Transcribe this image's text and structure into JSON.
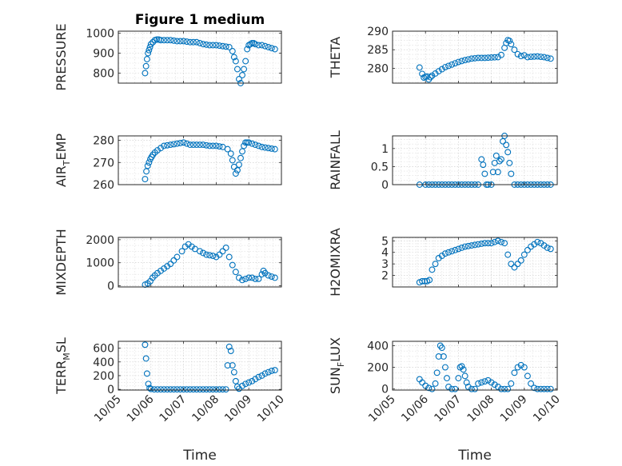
{
  "figure_title": "Figure 1 medium",
  "marker_color": "#0072BD",
  "chart_data": [
    {
      "type": "scatter",
      "panel": "PRESSURE",
      "ylabel": {
        "main": "PRESSURE",
        "sub": ""
      },
      "xlabel": "",
      "title": "Figure 1 medium",
      "ylim": [
        750,
        1010
      ],
      "yticks": [
        800,
        900,
        1000
      ],
      "yticklabels": [
        "800",
        "900",
        "1000"
      ],
      "x": [
        0.82,
        0.85,
        0.88,
        0.91,
        0.94,
        0.97,
        1.0,
        1.06,
        1.12,
        1.18,
        1.24,
        1.3,
        1.4,
        1.6,
        1.8,
        2.0,
        2.2,
        2.4,
        2.6,
        2.8,
        3.0,
        3.2,
        3.4,
        3.5,
        3.55,
        3.6,
        3.65,
        3.7,
        3.75,
        3.8,
        3.85,
        3.9,
        3.95,
        4.0,
        4.05,
        4.1,
        4.15,
        4.2,
        4.3,
        4.4,
        4.5,
        4.6,
        4.7,
        4.8
      ],
      "values": [
        800,
        835,
        870,
        900,
        915,
        930,
        945,
        955,
        965,
        968,
        968,
        965,
        965,
        965,
        960,
        960,
        955,
        955,
        945,
        940,
        940,
        935,
        930,
        910,
        880,
        860,
        820,
        770,
        750,
        790,
        820,
        860,
        920,
        940,
        945,
        950,
        950,
        945,
        940,
        940,
        935,
        930,
        925,
        920
      ]
    },
    {
      "type": "scatter",
      "panel": "THETA",
      "ylabel": {
        "main": "THETA",
        "sub": ""
      },
      "xlabel": "",
      "title": "",
      "ylim": [
        276,
        290
      ],
      "yticks": [
        280,
        285,
        290
      ],
      "yticklabels": [
        "280",
        "285",
        "290"
      ],
      "x": [
        0.82,
        0.9,
        0.95,
        1.0,
        1.05,
        1.1,
        1.15,
        1.2,
        1.3,
        1.4,
        1.6,
        1.8,
        2.0,
        2.2,
        2.4,
        2.6,
        2.8,
        3.0,
        3.2,
        3.3,
        3.4,
        3.45,
        3.5,
        3.55,
        3.6,
        3.7,
        3.8,
        3.9,
        4.0,
        4.1,
        4.2,
        4.4,
        4.6,
        4.8
      ],
      "values": [
        280.2,
        278.5,
        277.5,
        277.7,
        277.8,
        277.0,
        277.6,
        278.0,
        278.6,
        279.2,
        280.3,
        281.0,
        281.7,
        282.2,
        282.6,
        282.8,
        282.8,
        282.9,
        283.0,
        283.6,
        285.5,
        286.8,
        287.6,
        287.4,
        286.5,
        285.0,
        283.8,
        283.3,
        283.5,
        283.0,
        283.1,
        283.2,
        283.0,
        282.6
      ]
    },
    {
      "type": "scatter",
      "panel": "AIR_TEMP",
      "ylabel": {
        "main": "AIR",
        "sub": "T",
        "rest": "EMP"
      },
      "xlabel": "",
      "title": "",
      "ylim": [
        260,
        282
      ],
      "yticks": [
        260,
        270,
        280
      ],
      "yticklabels": [
        "260",
        "270",
        "280"
      ],
      "x": [
        0.82,
        0.86,
        0.9,
        0.94,
        0.98,
        1.02,
        1.06,
        1.12,
        1.2,
        1.3,
        1.4,
        1.6,
        1.8,
        2.0,
        2.2,
        2.4,
        2.6,
        2.8,
        3.0,
        3.2,
        3.35,
        3.45,
        3.5,
        3.55,
        3.6,
        3.65,
        3.7,
        3.75,
        3.8,
        3.85,
        3.9,
        3.95,
        4.0,
        4.1,
        4.2,
        4.3,
        4.4,
        4.6,
        4.8
      ],
      "values": [
        262.5,
        266,
        268.5,
        270,
        271.5,
        272.5,
        273.5,
        274.5,
        275.5,
        276.5,
        277.5,
        278,
        278.5,
        279,
        278,
        278,
        278,
        277.5,
        277.5,
        277,
        276,
        274,
        271,
        268,
        265,
        266.5,
        269,
        272,
        275,
        277.5,
        279,
        279,
        279,
        278.5,
        278,
        277.5,
        277,
        276.5,
        276
      ]
    },
    {
      "type": "scatter",
      "panel": "RAINFALL",
      "ylabel": {
        "main": "RAINFALL",
        "sub": ""
      },
      "xlabel": "",
      "title": "",
      "ylim": [
        0,
        1.35
      ],
      "yticks": [
        0,
        0.5,
        1
      ],
      "yticklabels": [
        "0",
        "0.5",
        "1"
      ],
      "x": [
        0.82,
        1.0,
        1.2,
        1.4,
        1.6,
        1.8,
        2.0,
        2.2,
        2.4,
        2.6,
        2.7,
        2.75,
        2.8,
        2.85,
        2.9,
        3.0,
        3.05,
        3.1,
        3.15,
        3.2,
        3.25,
        3.3,
        3.35,
        3.4,
        3.45,
        3.5,
        3.55,
        3.6,
        3.7,
        3.8,
        4.0,
        4.2,
        4.4,
        4.6,
        4.8
      ],
      "values": [
        0,
        0,
        0,
        0,
        0,
        0,
        0,
        0,
        0,
        0,
        0.7,
        0.55,
        0.3,
        0,
        0,
        0,
        0.35,
        0.6,
        0.8,
        0.35,
        0.65,
        0.7,
        1.2,
        1.35,
        1.1,
        0.9,
        0.6,
        0.3,
        0,
        0,
        0,
        0,
        0,
        0,
        0
      ]
    },
    {
      "type": "scatter",
      "panel": "MIXDEPTH",
      "ylabel": {
        "main": "MIXDEPTH",
        "sub": ""
      },
      "xlabel": "",
      "title": "",
      "ylim": [
        -50,
        2100
      ],
      "yticks": [
        0,
        1000,
        2000
      ],
      "yticklabels": [
        "0",
        "1000",
        "2000"
      ],
      "x": [
        0.82,
        0.9,
        0.98,
        1.05,
        1.12,
        1.2,
        1.3,
        1.4,
        1.6,
        1.8,
        1.95,
        2.05,
        2.15,
        2.25,
        2.35,
        2.5,
        2.7,
        2.9,
        3.0,
        3.1,
        3.2,
        3.3,
        3.4,
        3.5,
        3.6,
        3.7,
        3.8,
        3.9,
        4.0,
        4.1,
        4.2,
        4.3,
        4.4,
        4.45,
        4.5,
        4.6,
        4.7,
        4.8
      ],
      "values": [
        50,
        100,
        200,
        350,
        450,
        550,
        650,
        750,
        950,
        1250,
        1500,
        1700,
        1800,
        1700,
        1600,
        1500,
        1350,
        1300,
        1250,
        1350,
        1500,
        1650,
        1250,
        900,
        600,
        350,
        250,
        300,
        350,
        350,
        300,
        300,
        500,
        650,
        550,
        450,
        400,
        350
      ]
    },
    {
      "type": "scatter",
      "panel": "H2OMIXRA",
      "ylabel": {
        "main": "H2OMIXRA",
        "sub": ""
      },
      "xlabel": "",
      "title": "",
      "ylim": [
        1.0,
        5.3
      ],
      "yticks": [
        2,
        3,
        4,
        5
      ],
      "yticklabels": [
        "2",
        "3",
        "4",
        "5"
      ],
      "x": [
        0.82,
        0.9,
        0.98,
        1.05,
        1.12,
        1.2,
        1.3,
        1.4,
        1.5,
        1.6,
        1.7,
        1.8,
        2.0,
        2.2,
        2.4,
        2.6,
        2.8,
        3.0,
        3.1,
        3.2,
        3.3,
        3.4,
        3.5,
        3.6,
        3.7,
        3.8,
        3.9,
        4.0,
        4.1,
        4.2,
        4.3,
        4.4,
        4.5,
        4.6,
        4.7,
        4.8
      ],
      "values": [
        1.4,
        1.5,
        1.5,
        1.5,
        1.6,
        2.5,
        3.0,
        3.5,
        3.7,
        3.9,
        4.0,
        4.1,
        4.3,
        4.5,
        4.6,
        4.7,
        4.8,
        4.8,
        4.9,
        5.0,
        4.9,
        4.8,
        3.8,
        3.0,
        2.7,
        3.0,
        3.3,
        3.8,
        4.2,
        4.5,
        4.7,
        4.9,
        4.8,
        4.6,
        4.4,
        4.3
      ]
    },
    {
      "type": "scatter",
      "panel": "TERR_MSL",
      "ylabel": {
        "main": "TERR",
        "sub": "M",
        "rest": "SL"
      },
      "xlabel": "Time",
      "title": "",
      "ylim": [
        -10,
        700
      ],
      "yticks": [
        0,
        200,
        400,
        600
      ],
      "yticklabels": [
        "0",
        "200",
        "400",
        "600"
      ],
      "x": [
        0.82,
        0.85,
        0.88,
        0.92,
        0.96,
        1.0,
        1.1,
        1.2,
        1.4,
        1.6,
        1.8,
        2.0,
        2.2,
        2.4,
        2.6,
        2.8,
        3.0,
        3.2,
        3.3,
        3.35,
        3.4,
        3.45,
        3.5,
        3.55,
        3.6,
        3.65,
        3.7,
        3.8,
        3.9,
        4.0,
        4.1,
        4.2,
        4.3,
        4.4,
        4.5,
        4.6,
        4.7,
        4.8
      ],
      "values": [
        650,
        450,
        230,
        80,
        20,
        5,
        0,
        0,
        0,
        0,
        0,
        0,
        0,
        0,
        0,
        0,
        0,
        0,
        0,
        350,
        620,
        560,
        350,
        250,
        120,
        40,
        10,
        50,
        80,
        100,
        120,
        150,
        180,
        200,
        230,
        250,
        270,
        280
      ]
    },
    {
      "type": "scatter",
      "panel": "SUN_FLUX",
      "ylabel": {
        "main": "SUN",
        "sub": "F",
        "rest": "LUX"
      },
      "xlabel": "Time",
      "title": "",
      "ylim": [
        -10,
        440
      ],
      "yticks": [
        0,
        200,
        400
      ],
      "yticklabels": [
        "0",
        "200",
        "400"
      ],
      "x": [
        0.82,
        0.9,
        1.0,
        1.1,
        1.2,
        1.3,
        1.35,
        1.4,
        1.45,
        1.5,
        1.55,
        1.6,
        1.65,
        1.7,
        1.8,
        1.9,
        2.0,
        2.05,
        2.1,
        2.15,
        2.2,
        2.25,
        2.3,
        2.4,
        2.5,
        2.6,
        2.7,
        2.8,
        2.9,
        3.0,
        3.1,
        3.2,
        3.3,
        3.4,
        3.5,
        3.6,
        3.7,
        3.8,
        3.9,
        4.0,
        4.1,
        4.2,
        4.3,
        4.4,
        4.5,
        4.6,
        4.7,
        4.8
      ],
      "values": [
        90,
        60,
        30,
        10,
        0,
        50,
        150,
        300,
        400,
        380,
        300,
        200,
        100,
        20,
        0,
        0,
        100,
        200,
        210,
        180,
        120,
        60,
        20,
        0,
        0,
        50,
        60,
        70,
        80,
        60,
        40,
        20,
        0,
        0,
        0,
        50,
        150,
        200,
        220,
        200,
        120,
        50,
        10,
        0,
        0,
        0,
        0,
        0
      ]
    }
  ],
  "shared_x": {
    "axis_unit": "day index (0 = 10/05)",
    "xlim": [
      0,
      5
    ],
    "ticks": [
      0,
      1,
      2,
      3,
      4,
      5
    ],
    "ticklabels": [
      "10/05",
      "10/06",
      "10/07",
      "10/08",
      "10/09",
      "10/10"
    ]
  }
}
